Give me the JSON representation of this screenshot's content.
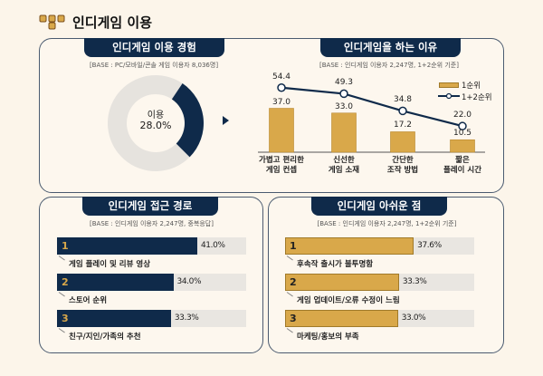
{
  "page_title": "인디게임 이용",
  "colors": {
    "navy": "#0f2a4a",
    "gold": "#d9a84a",
    "grey": "#e6e3de"
  },
  "chart_data": [
    {
      "type": "pie",
      "title": "인디게임 이용 경험",
      "base": "[BASE : PC/모바일/콘솔 게임 이용자 8,036명]",
      "center_label": "이용",
      "center_value": "28.0%",
      "values": [
        28.0,
        72.0
      ],
      "categories": [
        "이용",
        ""
      ]
    },
    {
      "type": "bar",
      "title": "인디게임을 하는 이유",
      "base": "[BASE : 인디게임 이용자 2,247명, 1+2순위 기준]",
      "categories": [
        "가볍고 편리한\n게임 컨셉",
        "신선한\n게임 소재",
        "간단한\n조작 방법",
        "짧은\n플레이 시간"
      ],
      "series": [
        {
          "name": "1순위",
          "type": "bar",
          "values": [
            37.0,
            33.0,
            17.2,
            10.5
          ],
          "labels": [
            "37.0",
            "33.0",
            "17.2",
            "10.5"
          ]
        },
        {
          "name": "1+2순위",
          "type": "line",
          "values": [
            54.4,
            49.3,
            34.8,
            22.0
          ],
          "labels": [
            "54.4",
            "49.3",
            "34.8",
            "22.0"
          ]
        }
      ],
      "legend": "top-right"
    },
    {
      "type": "bar",
      "orientation": "horizontal",
      "title": "인디게임 접근 경로",
      "base": "[BASE : 인디게임 이용자 2,247명, 중복응답]",
      "ranks": [
        "1",
        "2",
        "3"
      ],
      "categories": [
        "게임 플레이 및 리뷰 영상",
        "스토어 순위",
        "친구/지인/가족의 추천"
      ],
      "values": [
        41.0,
        34.0,
        33.3
      ],
      "labels": [
        "41.0%",
        "34.0%",
        "33.3%"
      ]
    },
    {
      "type": "bar",
      "orientation": "horizontal",
      "title": "인디게임 아쉬운 점",
      "base": "[BASE : 인디게임 이용자 2,247명, 1+2순위 기준]",
      "ranks": [
        "1",
        "2",
        "3"
      ],
      "categories": [
        "후속작 출시가 불투명함",
        "게임 업데이트/오류 수정이 느림",
        "마케팅/홍보의 부족"
      ],
      "values": [
        37.6,
        33.3,
        33.0
      ],
      "labels": [
        "37.6%",
        "33.3%",
        "33.0%"
      ]
    }
  ]
}
